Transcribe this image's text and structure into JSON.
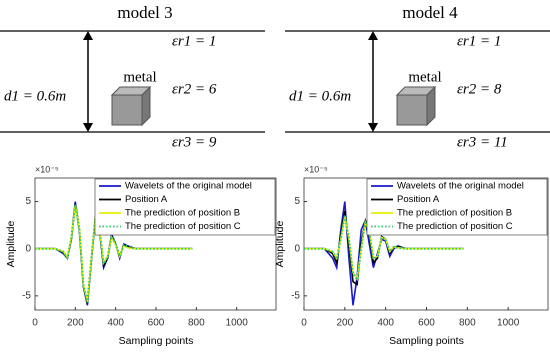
{
  "diagrams": [
    {
      "title": "model 3",
      "eps1": "εr1 = 1",
      "eps2": "εr2 = 6",
      "eps3": "εr3 = 9",
      "thickness": "d1 = 0.6m",
      "object": "metal"
    },
    {
      "title": "model 4",
      "eps1": "εr1 = 1",
      "eps2": "εr2 = 8",
      "eps3": "εr3 = 11",
      "thickness": "d1 = 0.6m",
      "object": "metal"
    }
  ],
  "chart_data": [
    {
      "type": "line",
      "x_label": "Sampling points",
      "y_label": "Amplitude",
      "y_scale_label": "×10⁻⁵",
      "xlim": [
        0,
        1200
      ],
      "xticks": [
        0,
        200,
        400,
        600,
        800,
        1000
      ],
      "ylim": [
        -6.5,
        7.5
      ],
      "yticks": [
        -5,
        0,
        5
      ],
      "legend": "upper right",
      "x": [
        0,
        100,
        140,
        160,
        180,
        200,
        220,
        240,
        260,
        280,
        300,
        320,
        340,
        360,
        380,
        400,
        420,
        440,
        460,
        500,
        550,
        650,
        780
      ],
      "series": [
        {
          "name": "Wavelets of the original model",
          "color": "#1a1acc",
          "style": "solid",
          "values": [
            0,
            0,
            -0.5,
            -1,
            1,
            5,
            2,
            -4,
            -6,
            -1,
            3.5,
            2,
            -2,
            -1,
            1.5,
            0.5,
            -1,
            0.5,
            0.3,
            0,
            0,
            0,
            0
          ]
        },
        {
          "name": "Position A",
          "color": "#000000",
          "style": "solid",
          "values": [
            0,
            0,
            -0.4,
            -1,
            1,
            4.8,
            2,
            -4,
            -5.8,
            -1,
            3.3,
            2,
            -1.8,
            -1,
            1.4,
            0.5,
            -0.9,
            0.4,
            0.2,
            0,
            0,
            0,
            0
          ]
        },
        {
          "name": "The  prediction of position B",
          "color": "#e6f000",
          "style": "solid",
          "values": [
            0,
            0,
            -0.3,
            -0.9,
            1.2,
            4.6,
            2.2,
            -3.8,
            -5.6,
            -0.8,
            3.5,
            2.1,
            -1.5,
            -0.8,
            1.2,
            0.4,
            -0.8,
            0.3,
            0.1,
            0,
            0,
            0,
            0
          ]
        },
        {
          "name": "The  prediction of position C",
          "color": "#22cc66",
          "style": "dotted",
          "values": [
            0,
            0,
            -0.3,
            -1,
            1.1,
            4.7,
            2,
            -3.9,
            -5.7,
            -0.9,
            3.4,
            2,
            -1.6,
            -0.9,
            1.3,
            0.5,
            -0.8,
            0.4,
            0.2,
            0,
            0,
            0,
            0
          ]
        }
      ]
    },
    {
      "type": "line",
      "x_label": "Sampling points",
      "y_label": "Amplitude",
      "y_scale_label": "×10⁻⁵",
      "xlim": [
        0,
        1200
      ],
      "xticks": [
        0,
        200,
        400,
        600,
        800,
        1000
      ],
      "ylim": [
        -6.5,
        7.5
      ],
      "yticks": [
        -5,
        0,
        5
      ],
      "legend": "upper right",
      "x": [
        0,
        100,
        140,
        160,
        180,
        200,
        220,
        240,
        260,
        280,
        300,
        320,
        340,
        360,
        380,
        400,
        420,
        440,
        460,
        500,
        550,
        650,
        780
      ],
      "series": [
        {
          "name": "Wavelets of the original model",
          "color": "#1a1acc",
          "style": "solid",
          "values": [
            0,
            0,
            -1,
            -2,
            2,
            5,
            -1,
            -6,
            -3,
            2,
            3,
            0.5,
            -2,
            -0.5,
            1,
            0.8,
            -0.8,
            0,
            0.3,
            0,
            0,
            0,
            0
          ]
        },
        {
          "name": "Position A",
          "color": "#000000",
          "style": "solid",
          "values": [
            0,
            0,
            -0.5,
            -1.5,
            1.5,
            4,
            0.5,
            -3.5,
            -3.8,
            0.5,
            3,
            1.5,
            -1.5,
            -1,
            1.3,
            1,
            -0.5,
            0.2,
            0.2,
            0,
            0,
            0,
            0
          ]
        },
        {
          "name": "The  prediction of position B",
          "color": "#e6f000",
          "style": "solid",
          "values": [
            0,
            0,
            -0.3,
            -1,
            1,
            3.5,
            1,
            -2.5,
            -3.2,
            0,
            2.8,
            1.8,
            -1,
            -0.8,
            1.2,
            1,
            -0.3,
            0.2,
            0.1,
            0,
            0,
            0,
            0
          ]
        },
        {
          "name": "The  prediction of position C",
          "color": "#22cc66",
          "style": "dotted",
          "values": [
            0,
            0,
            -0.3,
            -1.1,
            1.1,
            3.6,
            1.1,
            -2.6,
            -3.3,
            0,
            2.9,
            1.8,
            -1.1,
            -0.8,
            1.2,
            1,
            -0.3,
            0.2,
            0.1,
            0,
            0,
            0,
            0
          ]
        }
      ]
    }
  ]
}
